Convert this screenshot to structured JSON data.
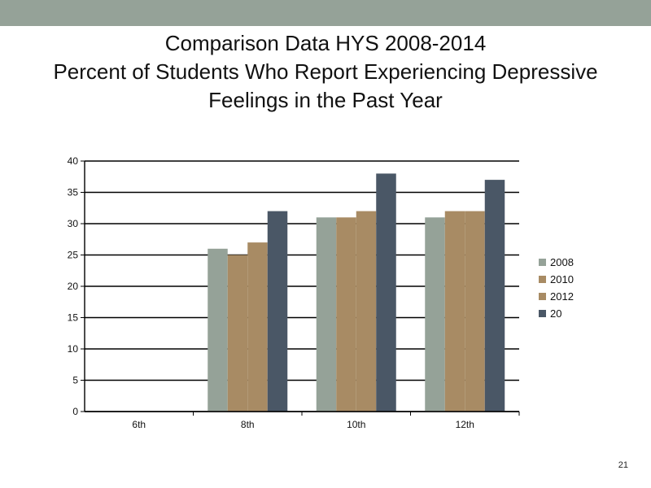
{
  "slide": {
    "title_lines": [
      "Comparison Data HYS 2008-2014",
      "Percent of Students Who Report Experiencing Depressive",
      "Feelings in the Past Year"
    ],
    "page_number": "21"
  },
  "colors": {
    "header_band": "#95a298",
    "series": [
      "#95a298",
      "#a88b64",
      "#a88b64",
      "#4a5766"
    ]
  },
  "chart_data": {
    "type": "bar",
    "categories": [
      "6th",
      "8th",
      "10th",
      "12th"
    ],
    "series": [
      {
        "name": "2008",
        "values": [
          0,
          26,
          31,
          31
        ]
      },
      {
        "name": "2010",
        "values": [
          0,
          25,
          31,
          32
        ]
      },
      {
        "name": "2012",
        "values": [
          0,
          27,
          32,
          32
        ]
      },
      {
        "name": "20",
        "values": [
          0,
          32,
          38,
          37
        ]
      }
    ],
    "ylim": [
      0,
      40
    ],
    "yticks": [
      0,
      5,
      10,
      15,
      20,
      25,
      30,
      35,
      40
    ],
    "grid": true,
    "legend": "right"
  }
}
